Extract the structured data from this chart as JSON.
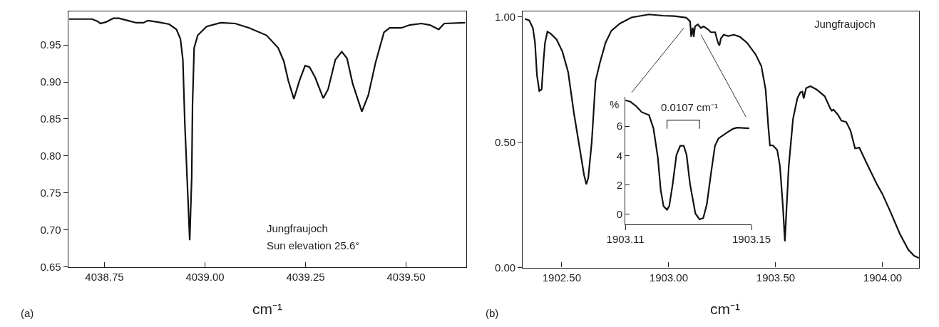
{
  "chart_data": [
    {
      "type": "line",
      "color": "#111111",
      "xlabel": "cm⁻¹",
      "annotations": [
        "Jungfraujoch",
        "Sun elevation 25.6°",
        "(a)"
      ],
      "x": [
        4038.662,
        4038.719,
        4038.733,
        4038.74,
        4038.754,
        4038.772,
        4038.786,
        4038.808,
        4038.829,
        4038.847,
        4038.858,
        4038.882,
        4038.911,
        4038.929,
        4038.939,
        4038.945,
        4038.95,
        4038.957,
        4038.962,
        4038.967,
        4038.969,
        4038.973,
        4038.982,
        4039.004,
        4039.039,
        4039.075,
        4039.11,
        4039.153,
        4039.182,
        4039.196,
        4039.207,
        4039.221,
        4039.235,
        4039.249,
        4039.26,
        4039.274,
        4039.294,
        4039.306,
        4039.324,
        4039.34,
        4039.353,
        4039.367,
        4039.39,
        4039.406,
        4039.424,
        4039.445,
        4039.459,
        4039.488,
        4039.509,
        4039.538,
        4039.559,
        4039.581,
        4039.595,
        4039.647
      ],
      "values": [
        0.985,
        0.985,
        0.982,
        0.979,
        0.981,
        0.986,
        0.986,
        0.983,
        0.98,
        0.98,
        0.983,
        0.981,
        0.978,
        0.971,
        0.958,
        0.93,
        0.842,
        0.751,
        0.686,
        0.771,
        0.87,
        0.946,
        0.963,
        0.975,
        0.98,
        0.979,
        0.973,
        0.963,
        0.946,
        0.928,
        0.902,
        0.877,
        0.902,
        0.922,
        0.92,
        0.906,
        0.878,
        0.89,
        0.93,
        0.941,
        0.932,
        0.898,
        0.86,
        0.882,
        0.926,
        0.967,
        0.973,
        0.973,
        0.977,
        0.979,
        0.977,
        0.971,
        0.979,
        0.98
      ],
      "xlim": [
        4038.66,
        4039.65
      ],
      "ylim": [
        0.65,
        0.995
      ],
      "xticks": [
        4038.75,
        {
          "value": 4039,
          "label": "4039.00"
        },
        4039.25,
        {
          "value": 4039.5,
          "label": "4039.50"
        }
      ],
      "yticks": [
        0.65,
        {
          "value": 0.7,
          "label": "0.70"
        },
        0.75,
        {
          "value": 0.8,
          "label": "0.80"
        },
        0.85,
        {
          "value": 0.9,
          "label": "0.90"
        },
        0.95
      ]
    },
    {
      "type": "line",
      "color": "#111111",
      "xlabel": "cm⁻¹",
      "annotations": [
        "Jungfraujoch",
        "(b)"
      ],
      "x": [
        1902.328,
        1902.348,
        1902.365,
        1902.375,
        1902.384,
        1902.395,
        1902.406,
        1902.415,
        1902.422,
        1902.433,
        1902.449,
        1902.476,
        1902.503,
        1902.53,
        1902.557,
        1902.584,
        1902.604,
        1902.615,
        1902.624,
        1902.64,
        1902.658,
        1902.678,
        1902.705,
        1902.732,
        1902.772,
        1902.826,
        1902.907,
        1902.974,
        1903.028,
        1903.082,
        1903.1,
        1903.105,
        1903.112,
        1903.117,
        1903.123,
        1903.136,
        1903.15,
        1903.163,
        1903.183,
        1903.197,
        1903.217,
        1903.23,
        1903.237,
        1903.244,
        1903.257,
        1903.278,
        1903.305,
        1903.332,
        1903.365,
        1903.406,
        1903.433,
        1903.453,
        1903.466,
        1903.473,
        1903.487,
        1903.507,
        1903.52,
        1903.534,
        1903.543,
        1903.551,
        1903.561,
        1903.581,
        1903.601,
        1903.615,
        1903.625,
        1903.631,
        1903.642,
        1903.662,
        1903.689,
        1903.729,
        1903.756,
        1903.763,
        1903.77,
        1903.79,
        1903.807,
        1903.83,
        1903.85,
        1903.871,
        1903.891,
        1903.925,
        1903.972,
        1903.999,
        1904.039,
        1904.08,
        1904.12,
        1904.147,
        1904.17
      ],
      "values": [
        0.991,
        0.985,
        0.955,
        0.897,
        0.768,
        0.704,
        0.71,
        0.827,
        0.897,
        0.94,
        0.932,
        0.909,
        0.861,
        0.779,
        0.615,
        0.475,
        0.37,
        0.332,
        0.358,
        0.498,
        0.744,
        0.815,
        0.897,
        0.944,
        0.973,
        0.997,
        1.009,
        1.004,
        1.002,
        0.996,
        0.981,
        0.92,
        0.956,
        0.92,
        0.961,
        0.969,
        0.955,
        0.961,
        0.95,
        0.938,
        0.938,
        0.897,
        0.885,
        0.914,
        0.928,
        0.923,
        0.928,
        0.92,
        0.897,
        0.85,
        0.803,
        0.709,
        0.557,
        0.487,
        0.487,
        0.469,
        0.404,
        0.24,
        0.105,
        0.24,
        0.404,
        0.592,
        0.674,
        0.698,
        0.701,
        0.674,
        0.715,
        0.723,
        0.711,
        0.683,
        0.633,
        0.625,
        0.63,
        0.61,
        0.586,
        0.58,
        0.545,
        0.475,
        0.478,
        0.416,
        0.334,
        0.293,
        0.217,
        0.135,
        0.071,
        0.047,
        0.038
      ],
      "xlim": [
        1902.318,
        1904.17
      ],
      "ylim": [
        0,
        1.02
      ],
      "xticks": [
        {
          "value": 1902.5,
          "label": "1902.50"
        },
        {
          "value": 1903,
          "label": "1903.00"
        },
        {
          "value": 1903.5,
          "label": "1903.50"
        },
        {
          "value": 1904,
          "label": "1904.00"
        }
      ],
      "yticks": [
        {
          "value": 0,
          "label": "0.00"
        },
        {
          "value": 0.5,
          "label": "0.50"
        },
        {
          "value": 1,
          "label": "1.00"
        }
      ]
    },
    {
      "type": "line",
      "color": "#111111",
      "ylabel": "%",
      "annotations": [
        "0.0107 cm⁻¹"
      ],
      "x": [
        1903.11,
        1903.1116,
        1903.1134,
        1903.1152,
        1903.1175,
        1903.1189,
        1903.1203,
        1903.1212,
        1903.1221,
        1903.1232,
        1903.1239,
        1903.125,
        1903.1262,
        1903.1274,
        1903.1285,
        1903.1294,
        1903.1305,
        1903.1322,
        1903.1335,
        1903.1347,
        1903.1358,
        1903.1372,
        1903.1384,
        1903.1395,
        1903.1408,
        1903.1422,
        1903.1441,
        1903.1454,
        1903.1493
      ],
      "values": [
        7.77,
        7.67,
        7.37,
        6.96,
        6.76,
        5.86,
        3.85,
        1.65,
        0.54,
        0.3,
        0.54,
        2.05,
        4.05,
        4.66,
        4.66,
        4.05,
        2.05,
        0.04,
        -0.36,
        -0.26,
        0.64,
        2.85,
        4.66,
        5.16,
        5.36,
        5.56,
        5.82,
        5.9,
        5.86
      ],
      "xlim": [
        1903.11,
        1903.15
      ],
      "ylim": [
        -0.7,
        8
      ],
      "xticks": [
        1903.11,
        1903.15
      ],
      "yticks": [
        0,
        2,
        4,
        6
      ]
    }
  ]
}
